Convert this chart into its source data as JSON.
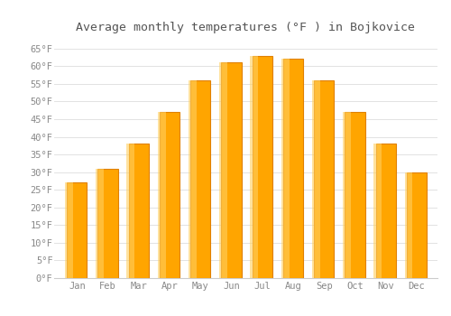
{
  "title": "Average monthly temperatures (°F ) in Bojkovice",
  "months": [
    "Jan",
    "Feb",
    "Mar",
    "Apr",
    "May",
    "Jun",
    "Jul",
    "Aug",
    "Sep",
    "Oct",
    "Nov",
    "Dec"
  ],
  "values": [
    27,
    31,
    38,
    47,
    56,
    61,
    63,
    62,
    56,
    47,
    38,
    30
  ],
  "bar_color": "#FFA500",
  "bar_edge_color": "#E08000",
  "background_color": "#ffffff",
  "grid_color": "#dddddd",
  "ylim": [
    0,
    68
  ],
  "yticks": [
    0,
    5,
    10,
    15,
    20,
    25,
    30,
    35,
    40,
    45,
    50,
    55,
    60,
    65
  ],
  "title_fontsize": 9.5,
  "tick_fontsize": 7.5,
  "font_family": "monospace",
  "tick_color": "#888888",
  "title_color": "#555555"
}
